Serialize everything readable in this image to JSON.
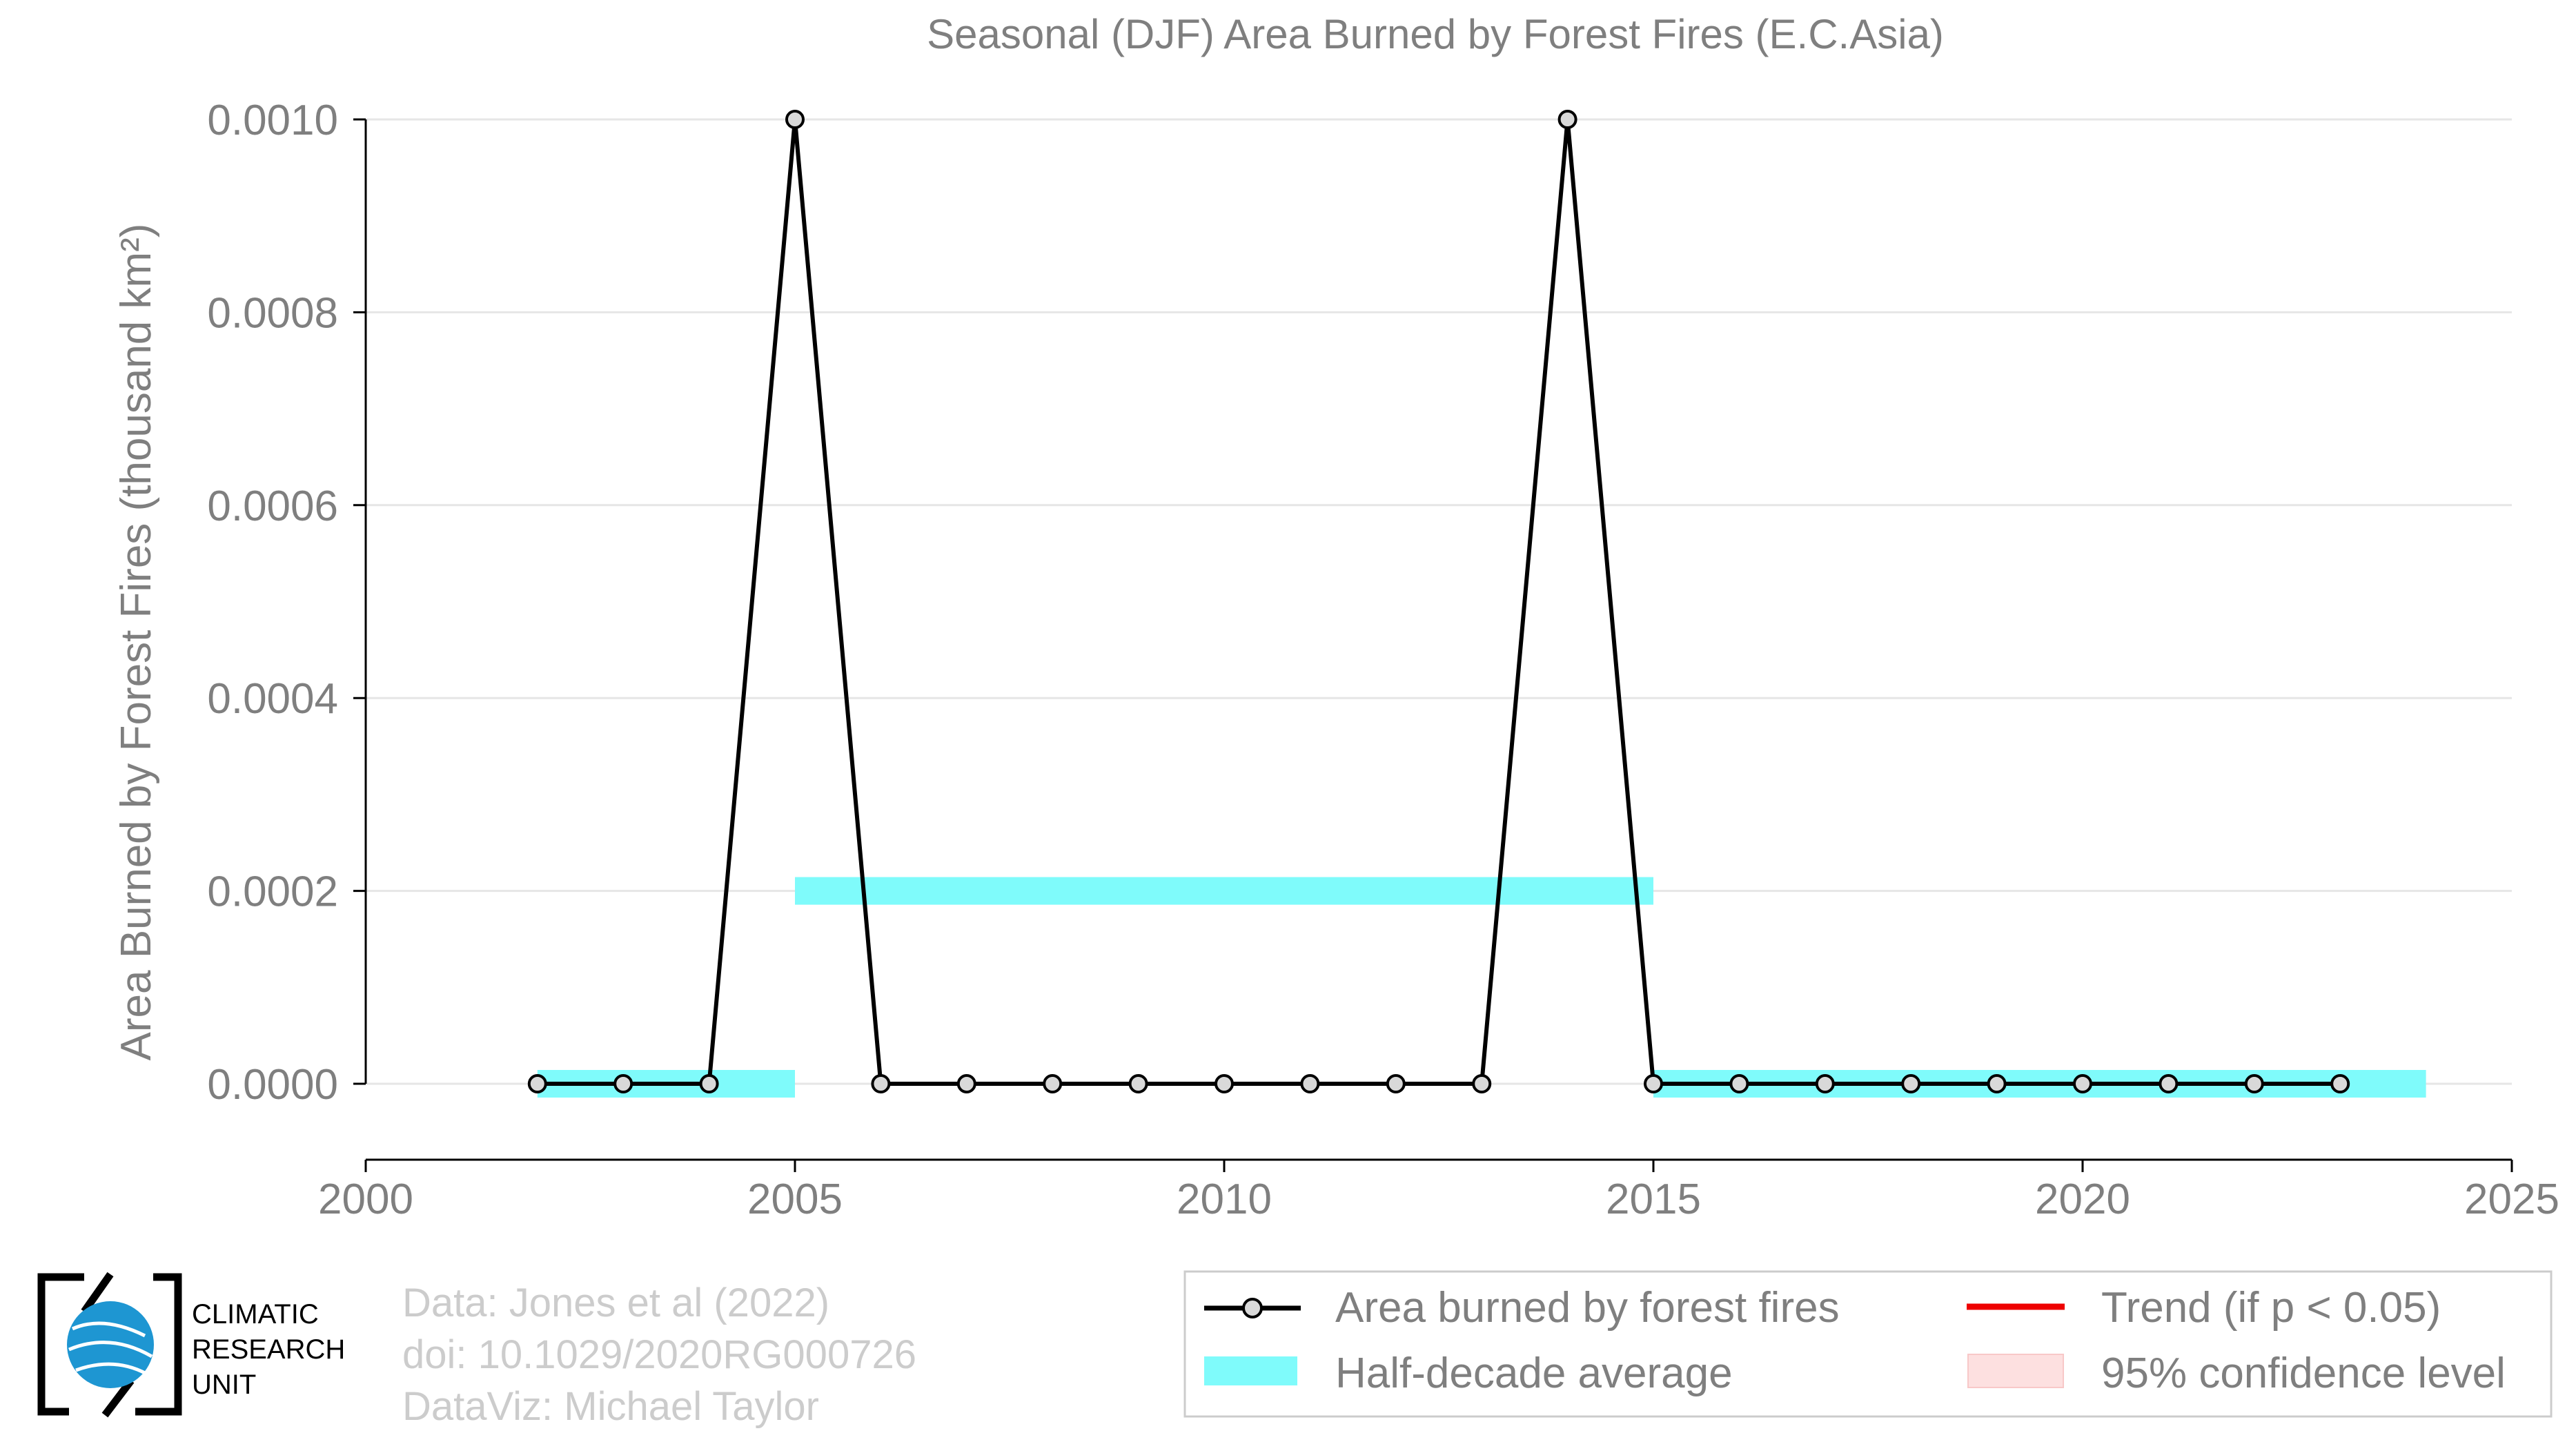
{
  "chart_data": {
    "type": "line",
    "title": "Seasonal (DJF) Area Burned by Forest Fires (E.C.Asia)",
    "ylabel": "Area Burned by Forest Fires (thousand km²)",
    "xlabel": "",
    "xlim": [
      2000,
      2025
    ],
    "ylim": [
      -8e-05,
      0.00104
    ],
    "x_ticks": [
      2000,
      2005,
      2010,
      2015,
      2020,
      2025
    ],
    "y_ticks": [
      0.0,
      0.0002,
      0.0004,
      0.0006,
      0.0008,
      0.001
    ],
    "y_tick_labels": [
      "0.0000",
      "0.0002",
      "0.0004",
      "0.0006",
      "0.0008",
      "0.0010"
    ],
    "grid": "horizontal",
    "series": [
      {
        "name": "Area burned by forest fires",
        "color": "#000000",
        "x": [
          2002,
          2003,
          2004,
          2005,
          2006,
          2007,
          2008,
          2009,
          2010,
          2011,
          2012,
          2013,
          2014,
          2015,
          2016,
          2017,
          2018,
          2019,
          2020,
          2021,
          2022,
          2023
        ],
        "y": [
          0,
          0,
          0,
          0.001,
          0,
          0,
          0,
          0,
          0,
          0,
          0,
          0,
          0.001,
          0,
          0,
          0,
          0,
          0,
          0,
          0,
          0,
          0
        ]
      }
    ],
    "half_decade_average": {
      "name": "Half-decade average",
      "color": "#7ffbfb",
      "segments": [
        {
          "x0": 2002,
          "x1": 2005,
          "y": 0
        },
        {
          "x0": 2005,
          "x1": 2015,
          "y": 0.0002
        },
        {
          "x0": 2015,
          "x1": 2024,
          "y": 0
        }
      ]
    },
    "legend": {
      "placement": "bottom-right",
      "entries": [
        {
          "label": "Area burned by forest fires",
          "kind": "line-marker",
          "color": "#000000"
        },
        {
          "label": "Trend (if p < 0.05)",
          "kind": "line",
          "color": "#ee0000"
        },
        {
          "label": "Half-decade average",
          "kind": "band",
          "color": "#7ffbfb"
        },
        {
          "label": "95% confidence level",
          "kind": "band",
          "color": "#fde0e0"
        }
      ]
    }
  },
  "footer": {
    "logo_text": [
      "CLIMATIC",
      "RESEARCH",
      "UNIT"
    ],
    "credits": [
      "Data: Jones et al (2022)",
      "doi: 10.1029/2020RG000726",
      "DataViz: Michael Taylor"
    ]
  },
  "colors": {
    "axis_text": "#7f7f7f",
    "grid": "#e6e6e6",
    "credits": "#cccccc",
    "logo_blue": "#1e96d2"
  }
}
